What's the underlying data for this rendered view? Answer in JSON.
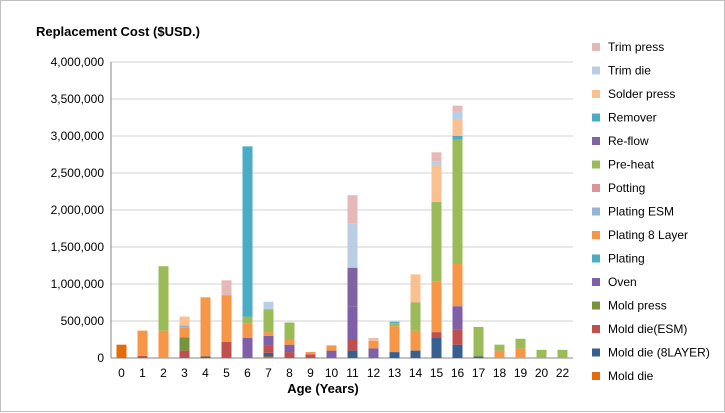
{
  "chart_data": {
    "type": "bar",
    "stacked": true,
    "title": "Replacement Cost ($USD.)",
    "xlabel": "Age (Years)",
    "ylabel": "",
    "ylim": [
      0,
      4000000
    ],
    "yticks": [
      "0",
      "500,000",
      "1,000,000",
      "1,500,000",
      "2,000,000",
      "2,500,000",
      "3,000,000",
      "3,500,000",
      "4,000,000"
    ],
    "ytick_values": [
      0,
      500000,
      1000000,
      1500000,
      2000000,
      2500000,
      3000000,
      3500000,
      4000000
    ],
    "grid": "horizontal",
    "legend_position": "right",
    "categories": [
      "0",
      "1",
      "2",
      "3",
      "4",
      "5",
      "6",
      "7",
      "8",
      "9",
      "10",
      "11",
      "12",
      "13",
      "14",
      "15",
      "16",
      "17",
      "18",
      "19",
      "20",
      "22"
    ],
    "series": [
      {
        "name": "Mold die",
        "color": "#E46C0A",
        "values": [
          180000,
          0,
          0,
          0,
          0,
          0,
          0,
          20000,
          0,
          0,
          0,
          0,
          0,
          0,
          0,
          0,
          0,
          0,
          0,
          0,
          0,
          0
        ]
      },
      {
        "name": "Mold die (8LAYER)",
        "color": "#376092",
        "values": [
          0,
          0,
          0,
          0,
          20000,
          0,
          0,
          50000,
          0,
          0,
          0,
          100000,
          0,
          80000,
          100000,
          270000,
          180000,
          20000,
          0,
          0,
          0,
          0
        ]
      },
      {
        "name": "Mold die(ESM)",
        "color": "#C0504D",
        "values": [
          0,
          30000,
          0,
          100000,
          0,
          220000,
          0,
          100000,
          80000,
          50000,
          0,
          150000,
          0,
          0,
          0,
          80000,
          200000,
          0,
          0,
          0,
          0,
          0
        ]
      },
      {
        "name": "Mold press",
        "color": "#77933C",
        "values": [
          0,
          0,
          0,
          180000,
          0,
          0,
          0,
          0,
          0,
          0,
          0,
          0,
          0,
          0,
          0,
          0,
          0,
          0,
          0,
          0,
          0,
          0
        ]
      },
      {
        "name": "Oven",
        "color": "#7F5FA8",
        "values": [
          0,
          0,
          0,
          0,
          0,
          0,
          270000,
          130000,
          100000,
          0,
          100000,
          450000,
          130000,
          0,
          0,
          0,
          320000,
          0,
          0,
          0,
          0,
          0
        ]
      },
      {
        "name": "Plating",
        "color": "#4BACC6",
        "values": [
          0,
          0,
          0,
          0,
          0,
          0,
          0,
          0,
          0,
          0,
          0,
          0,
          0,
          0,
          0,
          0,
          0,
          0,
          0,
          0,
          0,
          0
        ]
      },
      {
        "name": "Plating 8 Layer",
        "color": "#F79646",
        "values": [
          0,
          340000,
          370000,
          130000,
          800000,
          630000,
          200000,
          50000,
          70000,
          30000,
          70000,
          0,
          100000,
          350000,
          270000,
          680000,
          570000,
          0,
          100000,
          130000,
          0,
          0
        ]
      },
      {
        "name": "Plating ESM",
        "color": "#95B3D7",
        "values": [
          0,
          0,
          0,
          30000,
          0,
          0,
          0,
          0,
          0,
          0,
          0,
          0,
          0,
          0,
          0,
          0,
          0,
          0,
          0,
          0,
          0,
          0
        ]
      },
      {
        "name": "Potting",
        "color": "#D99694",
        "values": [
          0,
          0,
          0,
          0,
          0,
          0,
          0,
          0,
          0,
          0,
          0,
          0,
          0,
          0,
          0,
          0,
          0,
          0,
          0,
          0,
          0,
          0
        ]
      },
      {
        "name": "Pre-heat",
        "color": "#9BBB59",
        "values": [
          0,
          0,
          870000,
          0,
          0,
          0,
          90000,
          310000,
          230000,
          0,
          0,
          0,
          0,
          40000,
          380000,
          1080000,
          1680000,
          400000,
          80000,
          130000,
          110000,
          110000
        ]
      },
      {
        "name": "Re-flow",
        "color": "#8064A2",
        "values": [
          0,
          0,
          0,
          0,
          0,
          0,
          0,
          0,
          0,
          0,
          0,
          520000,
          0,
          0,
          0,
          0,
          0,
          0,
          0,
          0,
          0,
          0
        ]
      },
      {
        "name": "Remover",
        "color": "#4BACC6",
        "values": [
          0,
          0,
          0,
          0,
          0,
          0,
          2300000,
          0,
          0,
          0,
          0,
          0,
          0,
          20000,
          0,
          0,
          50000,
          0,
          0,
          0,
          0,
          0
        ]
      },
      {
        "name": "Solder press",
        "color": "#FAC090",
        "values": [
          0,
          0,
          0,
          120000,
          0,
          0,
          0,
          0,
          0,
          0,
          0,
          0,
          20000,
          0,
          380000,
          500000,
          230000,
          0,
          0,
          0,
          0,
          0
        ]
      },
      {
        "name": "Trim die",
        "color": "#B9CDE5",
        "values": [
          0,
          0,
          0,
          0,
          0,
          0,
          0,
          100000,
          0,
          0,
          0,
          600000,
          0,
          0,
          0,
          50000,
          100000,
          0,
          0,
          0,
          0,
          0
        ]
      },
      {
        "name": "Trim press",
        "color": "#E6B9B8",
        "values": [
          0,
          0,
          0,
          0,
          0,
          200000,
          0,
          0,
          0,
          0,
          0,
          380000,
          20000,
          0,
          0,
          120000,
          80000,
          0,
          0,
          0,
          0,
          0
        ]
      }
    ]
  }
}
